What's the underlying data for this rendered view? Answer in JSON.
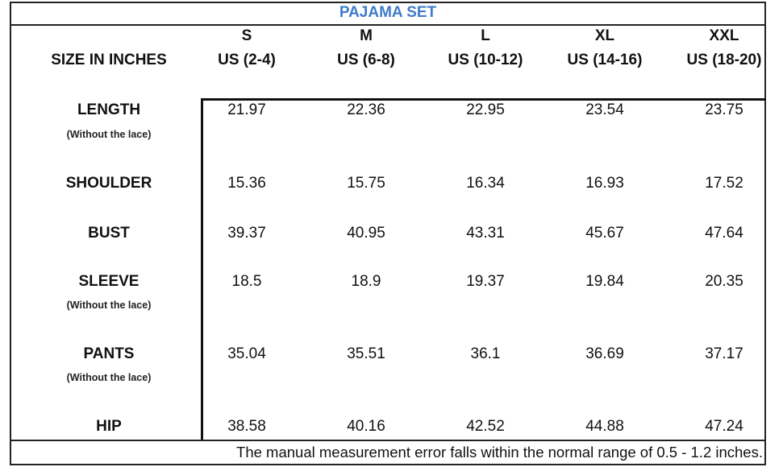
{
  "title": "PAJAMA SET",
  "header": {
    "label": "SIZE IN INCHES",
    "sizes": [
      {
        "code": "S",
        "us": "US (2-4)"
      },
      {
        "code": "M",
        "us": "US (6-8)"
      },
      {
        "code": "L",
        "us": "US (10-12)"
      },
      {
        "code": "XL",
        "us": "US (14-16)"
      },
      {
        "code": "XXL",
        "us": "US (18-20)"
      }
    ]
  },
  "rows": [
    {
      "label": "LENGTH",
      "note": "(Without the lace)",
      "values": [
        "21.97",
        "22.36",
        "22.95",
        "23.54",
        "23.75"
      ]
    },
    {
      "label": "SHOULDER",
      "note": "",
      "values": [
        "15.36",
        "15.75",
        "16.34",
        "16.93",
        "17.52"
      ]
    },
    {
      "label": "BUST",
      "note": "",
      "values": [
        "39.37",
        "40.95",
        "43.31",
        "45.67",
        "47.64"
      ]
    },
    {
      "label": "SLEEVE",
      "note": "(Without the lace)",
      "values": [
        "18.5",
        "18.9",
        "19.37",
        "19.84",
        "20.35"
      ]
    },
    {
      "label": "PANTS",
      "note": "(Without the lace)",
      "values": [
        "35.04",
        "35.51",
        "36.1",
        "36.69",
        "37.17"
      ]
    },
    {
      "label": "HIP",
      "note": "",
      "values": [
        "38.58",
        "40.16",
        "42.52",
        "44.88",
        "47.24"
      ]
    }
  ],
  "footnote": "The manual measurement error falls within the normal range of 0.5 - 1.2 inches."
}
